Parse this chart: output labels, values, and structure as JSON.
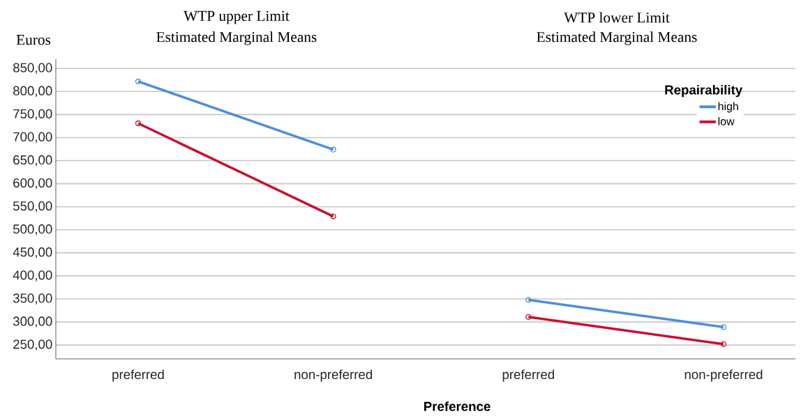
{
  "chart_data": {
    "type": "line",
    "ylabel": "Euros",
    "xlabel": "Preference",
    "legend_title": "Repairability",
    "annotations": [
      "WTP upper Limit",
      "Estimated Marginal Means",
      "WTP lower Limit",
      "Estimated Marginal Means"
    ],
    "categories": [
      "preferred",
      "non-preferred",
      "preferred",
      "non-preferred"
    ],
    "series": [
      {
        "color": "#4a8fdc",
        "values": [
          822,
          674,
          null,
          null
        ]
      },
      {
        "color": "#c8102e",
        "values": [
          731,
          529,
          null,
          null
        ]
      },
      {
        "name": "high",
        "color": "#4a8fdc",
        "values": [
          null,
          null,
          348,
          289
        ]
      },
      {
        "name": "low",
        "color": "#c8102e",
        "values": [
          null,
          null,
          311,
          252
        ]
      }
    ],
    "ylim": [
      220,
      870
    ],
    "yticks": [
      {
        "value": 250,
        "label": "250,00"
      },
      {
        "value": 300,
        "label": "300,00"
      },
      {
        "value": 350,
        "label": "350,00"
      },
      {
        "value": 400,
        "label": "400,00"
      },
      {
        "value": 450,
        "label": "450,00"
      },
      {
        "value": 500,
        "label": "500,00"
      },
      {
        "value": 550,
        "label": "550,00"
      },
      {
        "value": 600,
        "label": "600,00"
      },
      {
        "value": 650,
        "label": "650,00"
      },
      {
        "value": 700,
        "label": "700,00"
      },
      {
        "value": 750,
        "label": "750,00"
      },
      {
        "value": 800,
        "label": "800,00"
      },
      {
        "value": 850,
        "label": "850,00"
      }
    ],
    "grid": "y",
    "marker": "circle",
    "line_style": "solid",
    "legend": "top right"
  }
}
